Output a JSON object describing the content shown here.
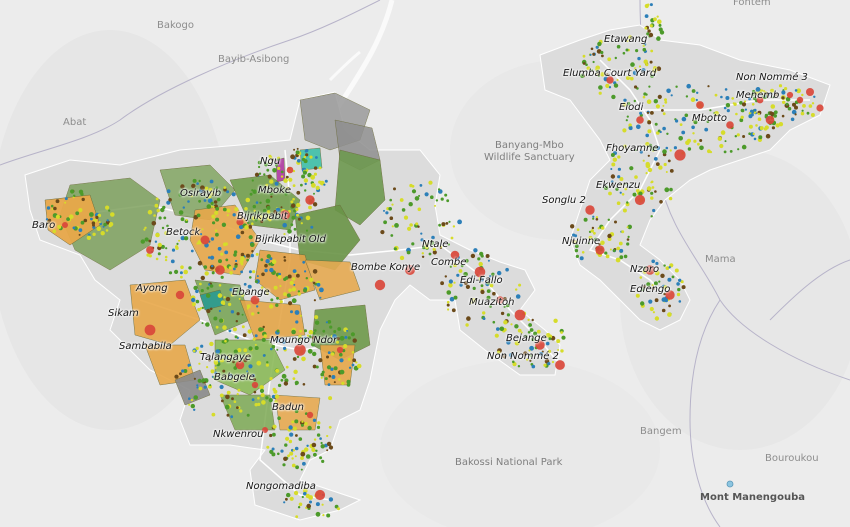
{
  "map": {
    "colors": {
      "background": "#ececec",
      "district_fill": "#dcdcdc",
      "road": "#ffffff",
      "parcel_orange": "#e8a84a",
      "parcel_green": "#7da25a",
      "parcel_gray": "#9a9a9a",
      "parcel_light_green": "#98c45f",
      "settlement_red": "#d9473a",
      "settlement_dark": "#6b4a1a",
      "point_yellow": "#d6dc2a",
      "point_green": "#4c9a2a",
      "point_blue": "#2c7fb8"
    },
    "base_labels": [
      {
        "id": "fontem",
        "text": "Fontem"
      },
      {
        "id": "bakogo",
        "text": "Bakogo"
      },
      {
        "id": "bayib-asibong",
        "text": "Bayib-Asibong"
      },
      {
        "id": "abat",
        "text": "Abat"
      },
      {
        "id": "mama",
        "text": "Mama"
      },
      {
        "id": "bangem",
        "text": "Bangem"
      },
      {
        "id": "bouroukou",
        "text": "Bouroukou"
      }
    ],
    "park_labels": {
      "banyang_line1": "Banyang-Mbo",
      "banyang_line2": "Wildlife Sanctuary",
      "bakossi": "Bakossi National Park"
    },
    "peak_label": "Mont Manengouba",
    "village_labels": [
      {
        "id": "etawang",
        "text": "Etawang"
      },
      {
        "id": "elumba",
        "text": "Elumba Court Yard"
      },
      {
        "id": "non-nomme-3",
        "text": "Non Nommé 3"
      },
      {
        "id": "menemb",
        "text": "Menemb"
      },
      {
        "id": "eiodi",
        "text": "Eiodi"
      },
      {
        "id": "mbotto",
        "text": "Mbotto"
      },
      {
        "id": "fhoyamne",
        "text": "Fhoyamne"
      },
      {
        "id": "ekwenzu",
        "text": "Ekwenzu"
      },
      {
        "id": "songlu-2",
        "text": "Songlu 2"
      },
      {
        "id": "njuinne",
        "text": "Njuinne"
      },
      {
        "id": "nzoro",
        "text": "Nzoro"
      },
      {
        "id": "ediengo",
        "text": "Ediengo"
      },
      {
        "id": "ngu",
        "text": "Ngu"
      },
      {
        "id": "osirayib",
        "text": "Osirayib"
      },
      {
        "id": "mboke",
        "text": "Mboke"
      },
      {
        "id": "bijrikpabit",
        "text": "Bijrikpabit"
      },
      {
        "id": "betock",
        "text": "Betock"
      },
      {
        "id": "bijrikpabit-old",
        "text": "Bijrikpabit Old"
      },
      {
        "id": "baro",
        "text": "Baro"
      },
      {
        "id": "ntale",
        "text": "Ntale"
      },
      {
        "id": "combe",
        "text": "Combe"
      },
      {
        "id": "bombe-konye",
        "text": "Bombe Konye"
      },
      {
        "id": "edi-fallo",
        "text": "Edi-Fallo"
      },
      {
        "id": "ayong",
        "text": "Ayong"
      },
      {
        "id": "ebange",
        "text": "Ebange"
      },
      {
        "id": "muazitoh",
        "text": "Muazitoh"
      },
      {
        "id": "sikam",
        "text": "Sikam"
      },
      {
        "id": "moungo-ndor",
        "text": "Moungo Ndor"
      },
      {
        "id": "bejange",
        "text": "Bejange"
      },
      {
        "id": "sambabila",
        "text": "Sambabila"
      },
      {
        "id": "non-nomme-2",
        "text": "Non Nommé 2"
      },
      {
        "id": "talangaye",
        "text": "Talangaye"
      },
      {
        "id": "babgele",
        "text": "Babgele"
      },
      {
        "id": "badun",
        "text": "Badun"
      },
      {
        "id": "nkwenrou",
        "text": "Nkwenrou"
      },
      {
        "id": "nongomadiba",
        "text": "Nongomadiba"
      }
    ]
  }
}
